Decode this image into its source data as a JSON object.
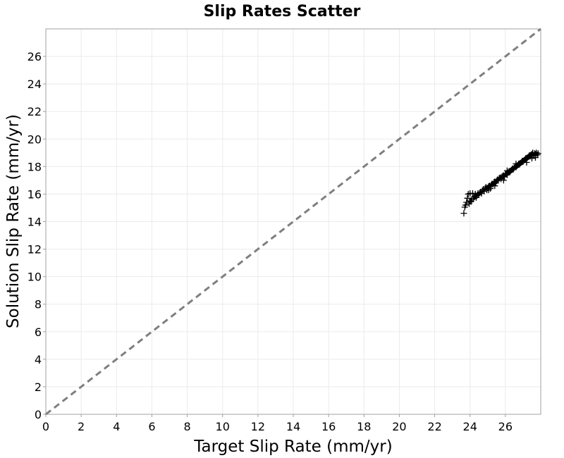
{
  "chart_data": {
    "type": "scatter",
    "title": "Slip Rates Scatter",
    "xlabel": "Target Slip Rate (mm/yr)",
    "ylabel": "Solution Slip Rate (mm/yr)",
    "xlim": [
      0,
      28
    ],
    "ylim": [
      0,
      28
    ],
    "xticks": [
      0,
      2,
      4,
      6,
      8,
      10,
      12,
      14,
      16,
      18,
      20,
      22,
      24,
      26
    ],
    "yticks": [
      0,
      2,
      4,
      6,
      8,
      10,
      12,
      14,
      16,
      18,
      20,
      22,
      24,
      26
    ],
    "grid": true,
    "marker": "+",
    "marker_color": "#000000",
    "reference_line": {
      "type": "y=x",
      "style": "dashed",
      "color": "#7f7f7f"
    },
    "series": [
      {
        "points": [
          [
            23.65,
            14.6
          ],
          [
            23.7,
            15.05
          ],
          [
            23.75,
            15.2
          ],
          [
            23.8,
            15.4
          ],
          [
            23.85,
            15.7
          ],
          [
            23.9,
            16.0
          ],
          [
            23.95,
            15.3
          ],
          [
            24.0,
            15.5
          ],
          [
            24.05,
            15.45
          ],
          [
            24.1,
            15.6
          ],
          [
            24.15,
            16.05
          ],
          [
            24.2,
            15.7
          ],
          [
            24.25,
            15.8
          ],
          [
            24.3,
            15.85
          ],
          [
            24.35,
            15.75
          ],
          [
            24.4,
            15.9
          ],
          [
            24.45,
            16.05
          ],
          [
            24.5,
            15.95
          ],
          [
            24.55,
            16.1
          ],
          [
            24.6,
            16.15
          ],
          [
            24.65,
            16.05
          ],
          [
            24.7,
            16.25
          ],
          [
            24.75,
            16.35
          ],
          [
            24.8,
            16.2
          ],
          [
            24.85,
            16.4
          ],
          [
            24.9,
            16.5
          ],
          [
            24.95,
            16.3
          ],
          [
            25.0,
            16.45
          ],
          [
            25.05,
            16.55
          ],
          [
            25.1,
            16.6
          ],
          [
            25.15,
            16.4
          ],
          [
            25.2,
            16.65
          ],
          [
            25.25,
            16.75
          ],
          [
            25.3,
            16.7
          ],
          [
            25.35,
            16.85
          ],
          [
            25.4,
            16.9
          ],
          [
            25.45,
            16.8
          ],
          [
            25.5,
            16.95
          ],
          [
            25.55,
            17.05
          ],
          [
            25.6,
            17.0
          ],
          [
            25.65,
            17.15
          ],
          [
            25.7,
            17.2
          ],
          [
            25.75,
            17.1
          ],
          [
            25.8,
            17.25
          ],
          [
            25.85,
            17.3
          ],
          [
            25.9,
            17.35
          ],
          [
            25.95,
            17.25
          ],
          [
            26.0,
            17.45
          ],
          [
            26.05,
            17.5
          ],
          [
            26.1,
            17.4
          ],
          [
            26.15,
            17.55
          ],
          [
            26.2,
            17.65
          ],
          [
            26.25,
            17.6
          ],
          [
            26.3,
            17.7
          ],
          [
            26.35,
            17.75
          ],
          [
            26.4,
            17.85
          ],
          [
            26.45,
            17.8
          ],
          [
            26.5,
            17.9
          ],
          [
            26.55,
            18.0
          ],
          [
            26.6,
            17.95
          ],
          [
            26.65,
            18.05
          ],
          [
            26.7,
            18.1
          ],
          [
            26.75,
            18.2
          ],
          [
            26.8,
            18.15
          ],
          [
            26.85,
            18.25
          ],
          [
            26.9,
            18.3
          ],
          [
            26.95,
            18.4
          ],
          [
            27.0,
            18.35
          ],
          [
            27.05,
            18.45
          ],
          [
            27.1,
            18.5
          ],
          [
            27.15,
            18.6
          ],
          [
            27.2,
            18.55
          ],
          [
            27.25,
            18.65
          ],
          [
            27.3,
            18.7
          ],
          [
            27.35,
            18.8
          ],
          [
            27.4,
            18.75
          ],
          [
            27.45,
            18.85
          ],
          [
            27.5,
            18.9
          ],
          [
            27.55,
            19.0
          ],
          [
            27.6,
            18.8
          ],
          [
            27.65,
            18.95
          ],
          [
            27.7,
            18.9
          ],
          [
            27.75,
            19.0
          ],
          [
            27.8,
            18.85
          ],
          [
            27.85,
            18.95
          ],
          [
            24.0,
            16.05
          ],
          [
            24.3,
            16.0
          ],
          [
            25.05,
            16.3
          ],
          [
            25.9,
            17.0
          ],
          [
            26.6,
            18.2
          ],
          [
            27.2,
            18.3
          ],
          [
            27.5,
            18.6
          ],
          [
            27.7,
            18.65
          ],
          [
            25.4,
            16.6
          ],
          [
            26.1,
            17.7
          ]
        ]
      }
    ]
  }
}
